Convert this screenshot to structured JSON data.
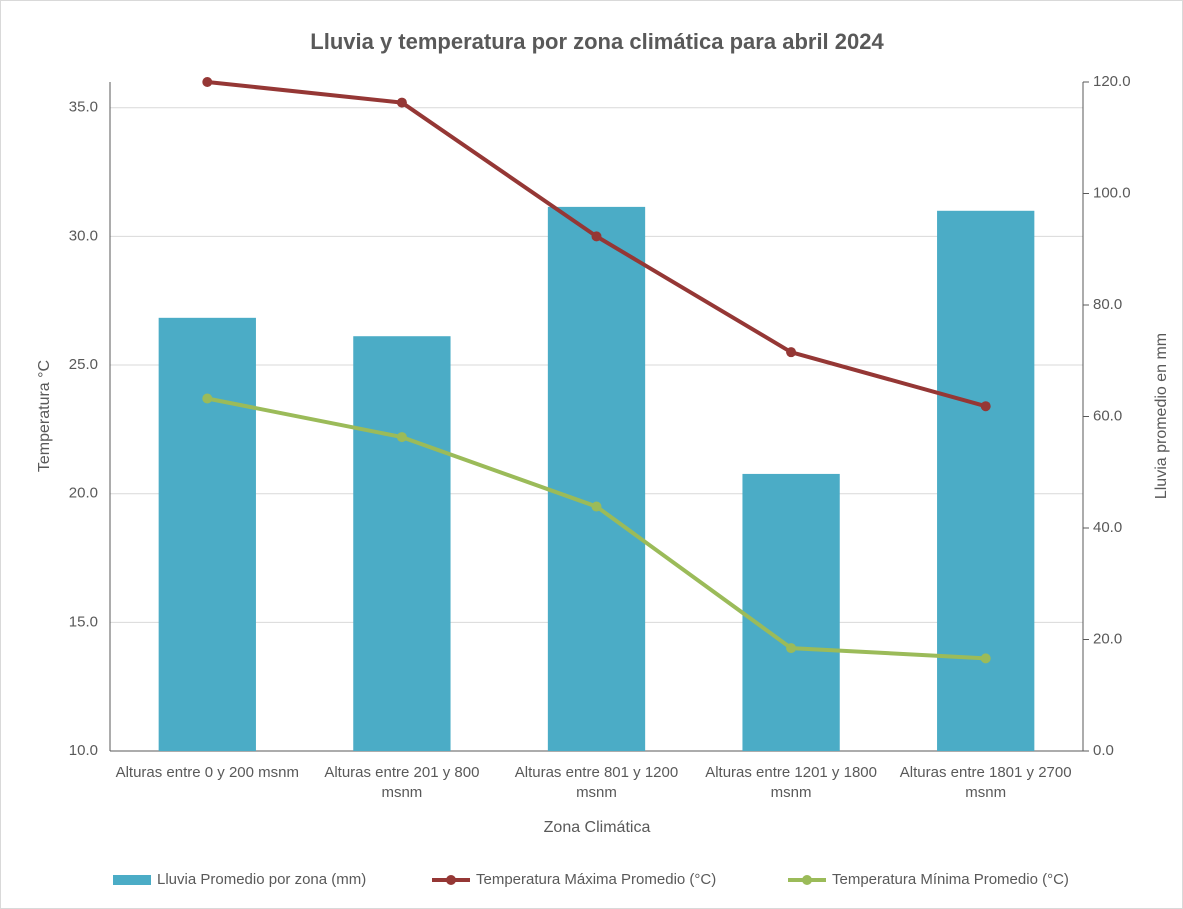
{
  "chart_data": {
    "type": "bar_line",
    "title": "Lluvia y temperatura por zona climática para abril 2024",
    "xlabel": "Zona Climática",
    "ylabel": "Temperatura °C",
    "y2label": "Lluvia promedio en mm",
    "categories": [
      "Alturas entre 0 y 200 msnm",
      "Alturas entre 201 y 800 msnm",
      "Alturas entre 801 y 1200 msnm",
      "Alturas entre 1201 y 1800 msnm",
      "Alturas entre 1801 y 2700 msnm"
    ],
    "ylim": [
      10,
      36
    ],
    "yticks": [
      {
        "value": 10,
        "label": "10.0"
      },
      {
        "value": 15,
        "label": "15.0"
      },
      {
        "value": 20,
        "label": "20.0"
      },
      {
        "value": 25,
        "label": "25.0"
      },
      {
        "value": 30,
        "label": "30.0"
      },
      {
        "value": 35,
        "label": "35.0"
      }
    ],
    "y2lim": [
      0,
      120
    ],
    "y2ticks": [
      {
        "value": 0,
        "label": "0.0"
      },
      {
        "value": 20,
        "label": "20.0"
      },
      {
        "value": 40,
        "label": "40.0"
      },
      {
        "value": 60,
        "label": "60.0"
      },
      {
        "value": 80,
        "label": "80.0"
      },
      {
        "value": 100,
        "label": "100.0"
      },
      {
        "value": 120,
        "label": "120.0"
      }
    ],
    "grid": true,
    "legend": "bottom",
    "series": [
      {
        "name": "Lluvia Promedio por zona (mm)",
        "type": "bar",
        "axis": "y2",
        "color": "#4bacc6",
        "values": [
          77.7,
          74.4,
          97.6,
          49.7,
          96.9
        ]
      },
      {
        "name": "Temperatura Máxima Promedio (°C)",
        "type": "line",
        "axis": "y",
        "color": "#953735",
        "values": [
          36.0,
          35.2,
          30.0,
          25.5,
          23.4
        ]
      },
      {
        "name": "Temperatura Mínima Promedio (°C)",
        "type": "line",
        "axis": "y",
        "color": "#9bbb59",
        "values": [
          23.7,
          22.2,
          19.5,
          14.0,
          13.6
        ]
      }
    ]
  }
}
